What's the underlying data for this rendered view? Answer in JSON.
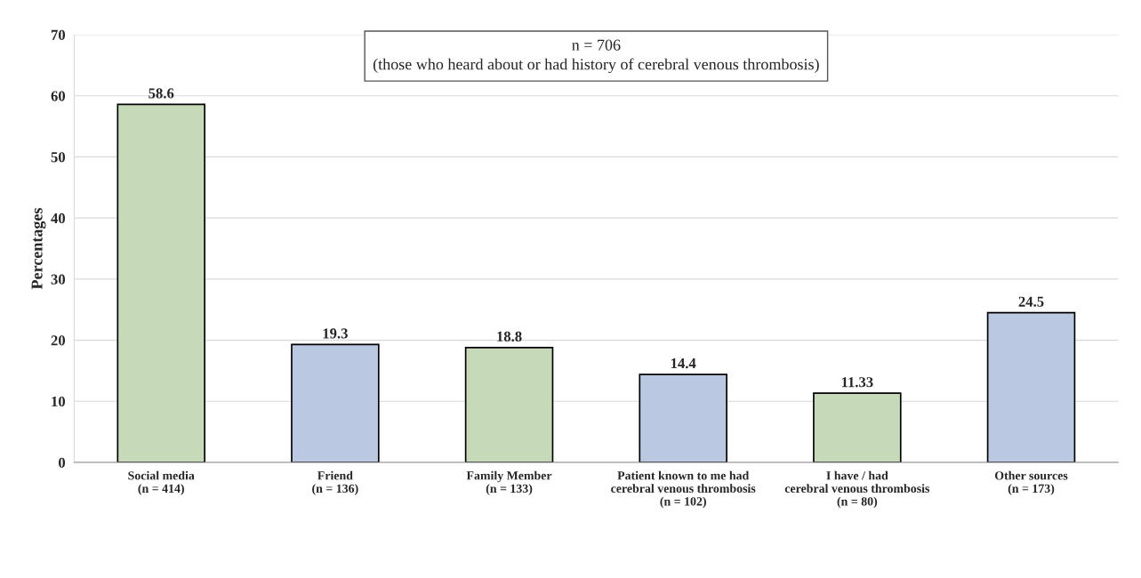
{
  "chart_data": {
    "type": "bar",
    "ylabel": "Percentages",
    "categories": [
      "Social media\n(n = 414)",
      "Friend\n(n = 136)",
      "Family Member\n(n = 133)",
      "Patient known to me had\ncerebral venous thrombosis\n(n = 102)",
      "I have / had\ncerebral venous thrombosis\n(n = 80)",
      "Other sources\n(n = 173)"
    ],
    "values": [
      58.6,
      19.3,
      18.8,
      14.4,
      11.33,
      24.5
    ],
    "colors": [
      "#c5e0b4",
      "#b4c7e7",
      "#c5e0b4",
      "#b4c7e7",
      "#c5e0b4",
      "#b4c7e7"
    ],
    "ylim": [
      0,
      70
    ],
    "yticks": [
      0,
      10,
      20,
      30,
      40,
      50,
      60,
      70
    ],
    "grid": "y",
    "data_labels": true,
    "annotations": [
      "n = 706",
      "(those who heard about or had history of cerebral venous thrombosis)"
    ]
  }
}
